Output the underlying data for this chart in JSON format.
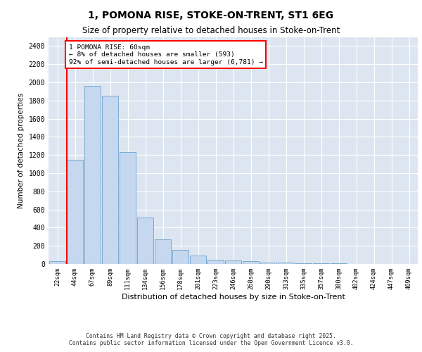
{
  "title1": "1, POMONA RISE, STOKE-ON-TRENT, ST1 6EG",
  "title2": "Size of property relative to detached houses in Stoke-on-Trent",
  "xlabel": "Distribution of detached houses by size in Stoke-on-Trent",
  "ylabel": "Number of detached properties",
  "categories": [
    "22sqm",
    "44sqm",
    "67sqm",
    "89sqm",
    "111sqm",
    "134sqm",
    "156sqm",
    "178sqm",
    "201sqm",
    "223sqm",
    "246sqm",
    "268sqm",
    "290sqm",
    "313sqm",
    "335sqm",
    "357sqm",
    "380sqm",
    "402sqm",
    "424sqm",
    "447sqm",
    "469sqm"
  ],
  "values": [
    28,
    1150,
    1960,
    1850,
    1230,
    510,
    275,
    155,
    90,
    50,
    42,
    30,
    18,
    15,
    10,
    8,
    5,
    3,
    2,
    2,
    1
  ],
  "bar_color": "#c5d8f0",
  "bar_edge_color": "#7aaad0",
  "annotation_text": "1 POMONA RISE: 60sqm\n← 8% of detached houses are smaller (593)\n92% of semi-detached houses are larger (6,781) →",
  "annotation_box_color": "white",
  "annotation_box_edge_color": "red",
  "vline_color": "red",
  "ylim": [
    0,
    2500
  ],
  "yticks": [
    0,
    200,
    400,
    600,
    800,
    1000,
    1200,
    1400,
    1600,
    1800,
    2000,
    2200,
    2400
  ],
  "bg_color": "#dde6f0",
  "grid_color": "white",
  "footer1": "Contains HM Land Registry data © Crown copyright and database right 2025.",
  "footer2": "Contains public sector information licensed under the Open Government Licence v3.0."
}
